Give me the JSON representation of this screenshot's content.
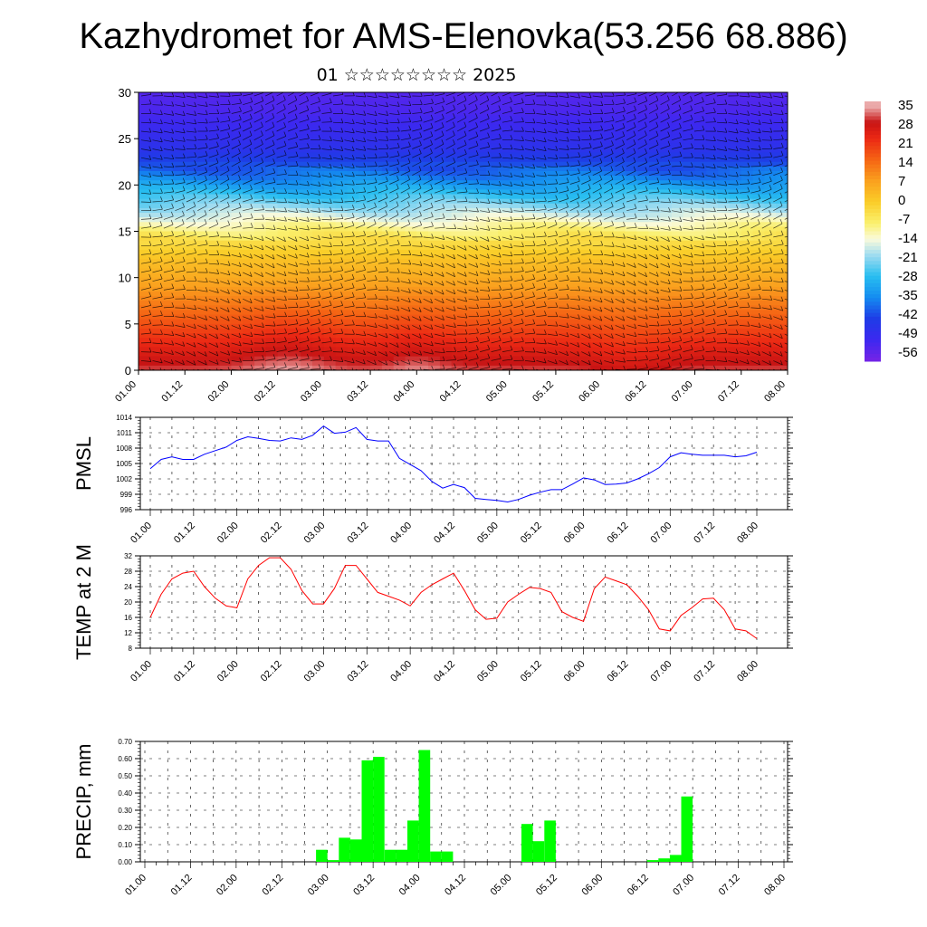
{
  "title": "Kazhydromet for AMS-Elenovka(53.256 68.886)",
  "subtitle": "01 ☆☆☆☆☆☆☆☆ 2025",
  "time_ticks": [
    "01.00",
    "01.12",
    "02.00",
    "02.12",
    "03.00",
    "03.12",
    "04.00",
    "04.12",
    "05.00",
    "05.12",
    "06.00",
    "06.12",
    "07.00",
    "07.12",
    "08.00"
  ],
  "chart_data": [
    {
      "type": "heatmap",
      "name": "temperature-height-section",
      "ylim": [
        0,
        30
      ],
      "yticks": [
        "0",
        "5",
        "10",
        "15",
        "20",
        "25",
        "30"
      ],
      "colorbar_labels": [
        "35",
        "28",
        "21",
        "14",
        "7",
        "0",
        "-7",
        "-14",
        "-21",
        "-28",
        "-35",
        "-42",
        "-49",
        "-56"
      ],
      "colorbar_range": [
        -60,
        38
      ],
      "level_profile_km": [
        0,
        3,
        6,
        9,
        12,
        14,
        15.5,
        17,
        19,
        21,
        24,
        28,
        31
      ],
      "level_profile_temp": [
        32,
        24,
        16,
        8,
        2,
        -4,
        -10,
        -18,
        -28,
        -38,
        -48,
        -54,
        -56
      ],
      "wind_barbs": true
    },
    {
      "type": "line",
      "name": "pmsl",
      "ylabel": "PMSL",
      "ylim": [
        996,
        1014
      ],
      "yticks": [
        "996",
        "999",
        "1002",
        "1005",
        "1008",
        "1011",
        "1014"
      ],
      "color": "#0000ff",
      "x_hours": [
        0,
        3,
        6,
        9,
        12,
        15,
        18,
        21,
        24,
        27,
        30,
        33,
        36,
        39,
        42,
        45,
        48,
        51,
        54,
        57,
        60,
        63,
        66,
        69,
        72,
        75,
        78,
        81,
        84,
        87,
        90,
        93,
        96,
        99,
        102,
        105,
        108,
        111,
        114,
        117,
        120,
        123,
        126,
        129,
        132,
        135,
        138,
        141,
        144,
        147,
        150,
        153,
        156,
        159,
        162,
        165,
        168
      ],
      "values": [
        1004.0,
        1005.8,
        1006.3,
        1005.8,
        1005.8,
        1006.8,
        1007.5,
        1008.2,
        1009.5,
        1010.2,
        1009.9,
        1009.5,
        1009.4,
        1010.0,
        1009.7,
        1010.5,
        1012.3,
        1010.9,
        1011.1,
        1012.0,
        1009.7,
        1009.4,
        1009.4,
        1006.0,
        1004.8,
        1003.6,
        1001.5,
        1000.2,
        1000.9,
        1000.3,
        998.2,
        998.0,
        997.8,
        997.5,
        998.0,
        998.8,
        999.4,
        999.9,
        999.9,
        1001.0,
        1002.2,
        1001.8,
        1000.9,
        1001.0,
        1001.2,
        1002.0,
        1003.0,
        1004.2,
        1006.3,
        1007.1,
        1006.8,
        1006.6,
        1006.6,
        1006.6,
        1006.3,
        1006.5,
        1007.2
      ]
    },
    {
      "type": "line",
      "name": "temp-2m",
      "ylabel": "TEMP at 2 M",
      "ylim": [
        8,
        32
      ],
      "yticks": [
        "8",
        "12",
        "16",
        "20",
        "24",
        "28",
        "32"
      ],
      "color": "#ff0000",
      "x_hours": [
        0,
        3,
        6,
        9,
        12,
        15,
        18,
        21,
        24,
        27,
        30,
        33,
        36,
        39,
        42,
        45,
        48,
        51,
        54,
        57,
        60,
        63,
        66,
        69,
        72,
        75,
        78,
        81,
        84,
        87,
        90,
        93,
        96,
        99,
        102,
        105,
        108,
        111,
        114,
        117,
        120,
        123,
        126,
        129,
        132,
        135,
        138,
        141,
        144,
        147,
        150,
        153,
        156,
        159,
        162,
        165,
        168
      ],
      "values": [
        16,
        22,
        26,
        27.5,
        28,
        24,
        21,
        19,
        18.5,
        26,
        29.5,
        31.5,
        31.5,
        28.5,
        23,
        19.5,
        19.5,
        23.5,
        29.5,
        29.5,
        26,
        22.5,
        21.5,
        20.5,
        19,
        22.5,
        24.5,
        26,
        27.5,
        23,
        18,
        15.5,
        15.8,
        20,
        22,
        23.8,
        23.5,
        22.5,
        17.5,
        16,
        15,
        23.5,
        26.5,
        25.5,
        24.5,
        21.5,
        18,
        13,
        12.5,
        16.5,
        18.5,
        20.8,
        21,
        18,
        13,
        12.5,
        10.5
      ]
    },
    {
      "type": "bar",
      "name": "precip",
      "ylabel": "PRECIP, mm",
      "ylim": [
        0,
        0.7
      ],
      "yticks": [
        "0.00",
        "0.10",
        "0.20",
        "0.30",
        "0.40",
        "0.50",
        "0.60",
        "0.70"
      ],
      "color": "#00ff00",
      "bar_width_hours": 3,
      "x_hours": [
        45,
        48,
        51,
        54,
        57,
        60,
        63,
        66,
        69,
        72,
        75,
        78,
        99,
        102,
        105,
        132,
        135,
        138,
        141
      ],
      "values": [
        0.07,
        0.01,
        0.14,
        0.13,
        0.59,
        0.61,
        0.07,
        0.07,
        0.24,
        0.65,
        0.06,
        0.06,
        0.22,
        0.12,
        0.24,
        0.01,
        0.02,
        0.04,
        0.38
      ]
    }
  ]
}
